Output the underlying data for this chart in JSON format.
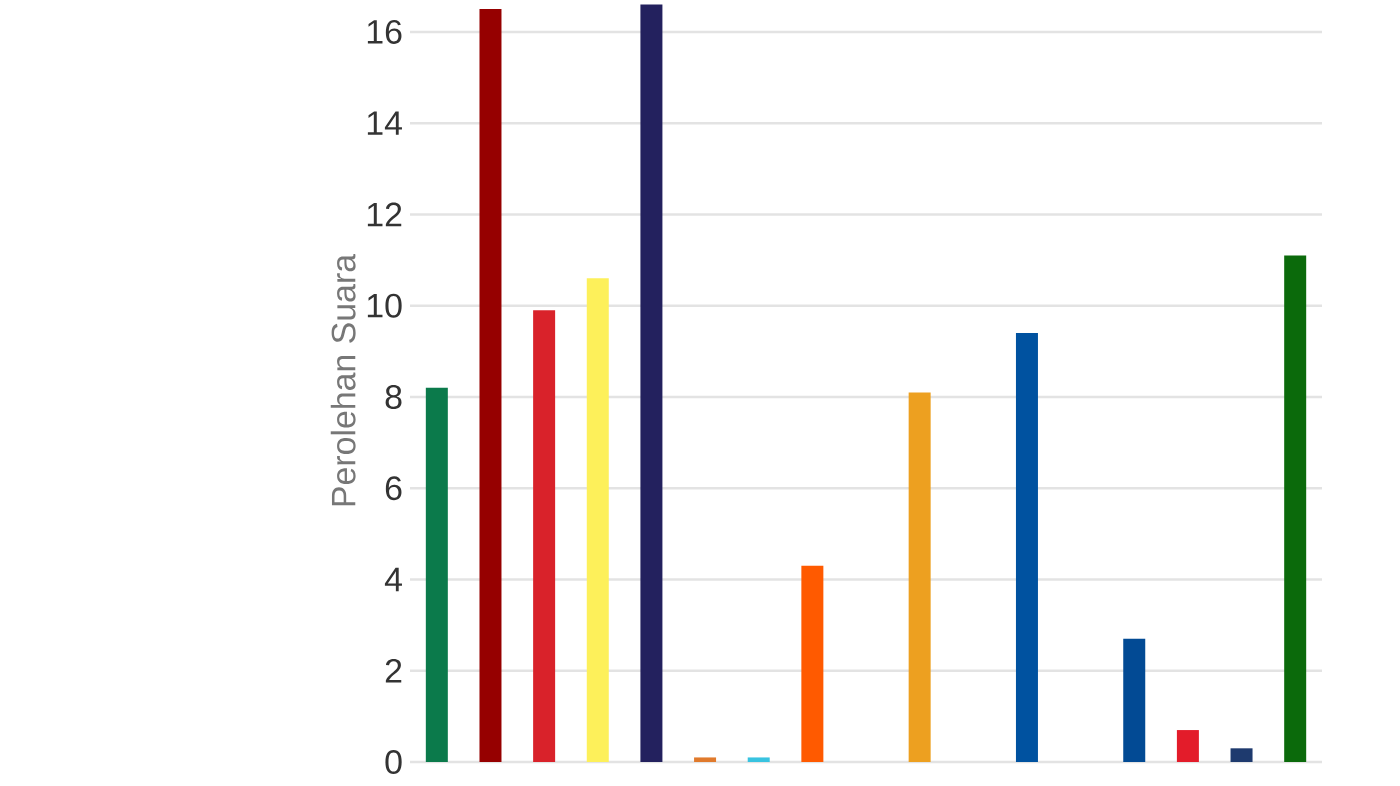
{
  "chart_data": {
    "type": "bar",
    "ylabel": "Perolehan Suara",
    "categories": [
      null,
      null,
      null,
      null,
      null,
      null,
      null,
      null,
      null,
      null,
      null,
      null,
      null,
      null,
      null,
      null,
      null
    ],
    "values": [
      8.2,
      16.5,
      9.9,
      10.6,
      16.6,
      0.1,
      0.1,
      4.3,
      0,
      8.1,
      0,
      9.4,
      0,
      2.7,
      0.7,
      0.3,
      11.1
    ],
    "colors": [
      "#0b7a4b",
      "#960000",
      "#d9222a",
      "#fdf05a",
      "#23215e",
      "#e07a2c",
      "#38c3e0",
      "#ff5a00",
      null,
      "#eda020",
      null,
      "#0052a0",
      null,
      "#024a94",
      "#e31c2a",
      "#1e3a6e",
      "#0b6a0b"
    ],
    "ylim": [
      0,
      16.7
    ],
    "yticks": [
      0,
      2,
      4,
      6,
      8,
      10,
      12,
      14,
      16
    ],
    "grid": "y"
  }
}
